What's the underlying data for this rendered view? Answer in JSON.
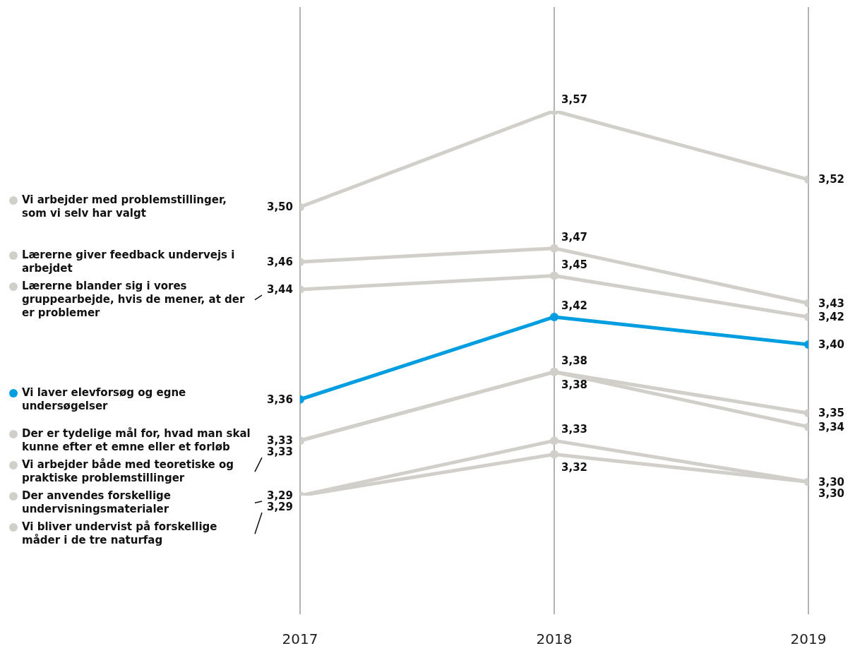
{
  "chart_data": {
    "type": "line",
    "categories": [
      "2017",
      "2018",
      "2019"
    ],
    "grid": "x",
    "marker": "circle",
    "line_style": "solid",
    "legend": "left",
    "series": [
      {
        "name": "Vi arbejder med problemstillinger, som vi selv har valgt",
        "color": "#d0cfca",
        "values": [
          3.5,
          3.57,
          3.52
        ],
        "value_labels": [
          "3,50",
          "3,57",
          "3,52"
        ]
      },
      {
        "name": "Lærerne giver feedback undervejs i arbejdet",
        "color": "#d0cfca",
        "values": [
          3.46,
          3.47,
          3.43
        ],
        "value_labels": [
          "3,46",
          "3,47",
          "3,43"
        ]
      },
      {
        "name": "Lærerne blander sig i vores gruppearbejde, hvis de mener, at der er problemer",
        "color": "#d0cfca",
        "values": [
          3.44,
          3.45,
          3.42
        ],
        "value_labels": [
          "3,44",
          "3,45",
          "3,42"
        ]
      },
      {
        "name": "Vi laver elevforsøg og egne undersøgelser",
        "color": "#009de0",
        "values": [
          3.36,
          3.42,
          3.4
        ],
        "value_labels": [
          "3,36",
          "3,42",
          "3,40"
        ]
      },
      {
        "name": "Der er tydelige mål for, hvad man skal kunne efter et emne eller et forløb",
        "color": "#d0cfca",
        "values": [
          3.33,
          3.38,
          3.35
        ],
        "value_labels": [
          "3,33",
          "3,38",
          "3,35"
        ]
      },
      {
        "name": "Vi arbejder både med teoretiske og praktiske problemstillinger",
        "color": "#d0cfca",
        "values": [
          3.33,
          3.38,
          3.34
        ],
        "value_labels": [
          "3,33",
          "3,38",
          "3,34"
        ]
      },
      {
        "name": "Der anvendes forskellige undervisningsmaterialer",
        "color": "#d0cfca",
        "values": [
          3.29,
          3.33,
          3.3
        ],
        "value_labels": [
          "3,29",
          "3,33",
          "3,30"
        ]
      },
      {
        "name": "Vi bliver undervist på forskellige måder i de tre naturfag",
        "color": "#d0cfca",
        "values": [
          3.29,
          3.32,
          3.3
        ],
        "value_labels": [
          "3,29",
          "3,32",
          "3,30"
        ]
      }
    ]
  }
}
